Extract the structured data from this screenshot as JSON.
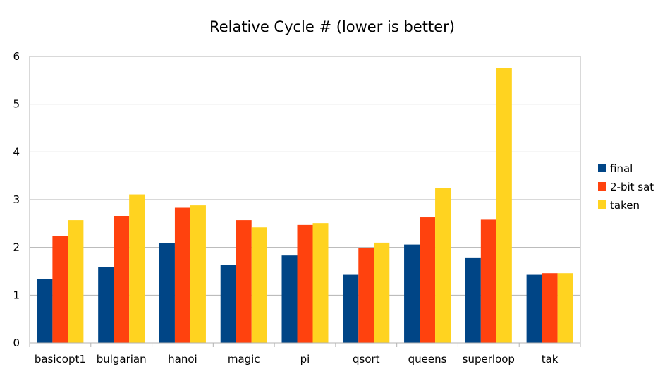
{
  "chart_data": {
    "type": "bar",
    "title": "Relative Cycle # (lower is better)",
    "categories": [
      "basicopt1",
      "bulgarian",
      "hanoi",
      "magic",
      "pi",
      "qsort",
      "queens",
      "superloop",
      "tak"
    ],
    "series": [
      {
        "name": "final",
        "color": "#004586",
        "values": [
          1.33,
          1.59,
          2.09,
          1.64,
          1.83,
          1.44,
          2.06,
          1.79,
          1.44
        ]
      },
      {
        "name": "2-bit sat",
        "color": "#ff420e",
        "values": [
          2.24,
          2.66,
          2.83,
          2.57,
          2.47,
          1.99,
          2.63,
          2.58,
          1.46
        ]
      },
      {
        "name": "taken",
        "color": "#ffd320",
        "values": [
          2.57,
          3.11,
          2.88,
          2.42,
          2.51,
          2.1,
          3.25,
          5.75,
          1.46
        ]
      }
    ],
    "yticks": [
      "0",
      "1",
      "2",
      "3",
      "4",
      "5",
      "6"
    ],
    "ylim": [
      0,
      6
    ],
    "grid": true,
    "legend": "right"
  }
}
